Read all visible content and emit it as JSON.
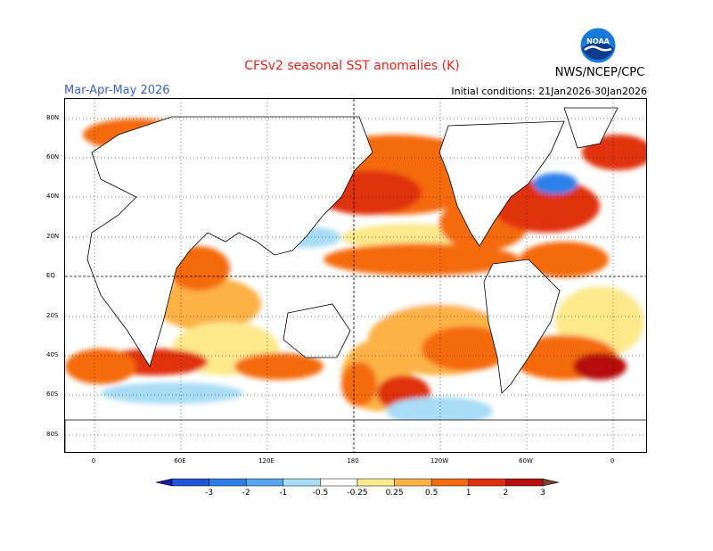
{
  "header": {
    "title": "CFSv2 seasonal SST anomalies (K)",
    "season": "Mar-Apr-May 2026",
    "initial_conditions": "Initial conditions: 21Jan2026-30Jan2026",
    "agency": "NWS/NCEP/CPC",
    "logo_text": "NOAA"
  },
  "map": {
    "lat_labels": [
      "80N",
      "60N",
      "40N",
      "20N",
      "EQ",
      "20S",
      "40S",
      "60S",
      "80S"
    ],
    "lon_labels": [
      "0",
      "60E",
      "120E",
      "180",
      "120W",
      "60W",
      "0"
    ]
  },
  "colorbar": {
    "labels": [
      "-3",
      "-2",
      "-1",
      "-0.5",
      "-0.25",
      "0.25",
      "0.5",
      "1",
      "2",
      "3"
    ],
    "colors": [
      "#1f1b9e",
      "#1f57d9",
      "#2e7fe8",
      "#56a6f0",
      "#a9dcf5",
      "#ffffff",
      "#fde88c",
      "#fdb247",
      "#f46b0f",
      "#e03010",
      "#b51010",
      "#7a4030"
    ]
  }
}
